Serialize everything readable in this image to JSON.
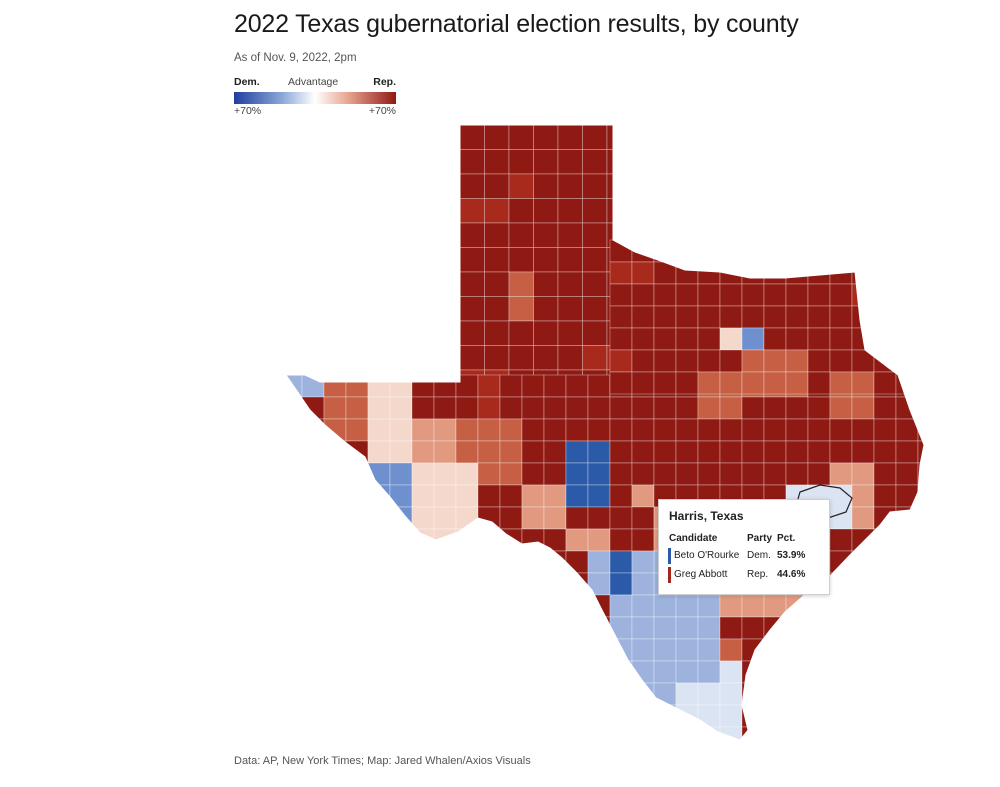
{
  "title": "2022 Texas gubernatorial election results, by county",
  "subtitle": "As of Nov. 9, 2022, 2pm",
  "legend": {
    "dem_label": "Dem.",
    "center_label": "Advantage",
    "rep_label": "Rep.",
    "left_tick": "+70%",
    "right_tick": "+70%",
    "dem_color": "#1f3f9e",
    "rep_color": "#8f1a14"
  },
  "tooltip": {
    "county": "Harris, Texas",
    "headers": {
      "candidate": "Candidate",
      "party": "Party",
      "pct": "Pct."
    },
    "rows": [
      {
        "name": "Beto O'Rourke",
        "party": "Dem.",
        "pct": "53.9%",
        "color": "#2a5aa8"
      },
      {
        "name": "Greg Abbott",
        "party": "Rep.",
        "pct": "44.6%",
        "color": "#a3271c"
      }
    ]
  },
  "footer": "Data: AP, New York Times; Map: Jared Whalen/Axios Visuals",
  "colors": {
    "safe_rep": "#8f1a14",
    "strong_rep": "#a82a1c",
    "mid_rep": "#c65f44",
    "lean_rep": "#e19a80",
    "slight_rep": "#f4d8cc",
    "slight_dem": "#dbe4f2",
    "lean_dem": "#9db3de",
    "mid_dem": "#6f90cf",
    "strong_dem": "#2a5aa8"
  }
}
